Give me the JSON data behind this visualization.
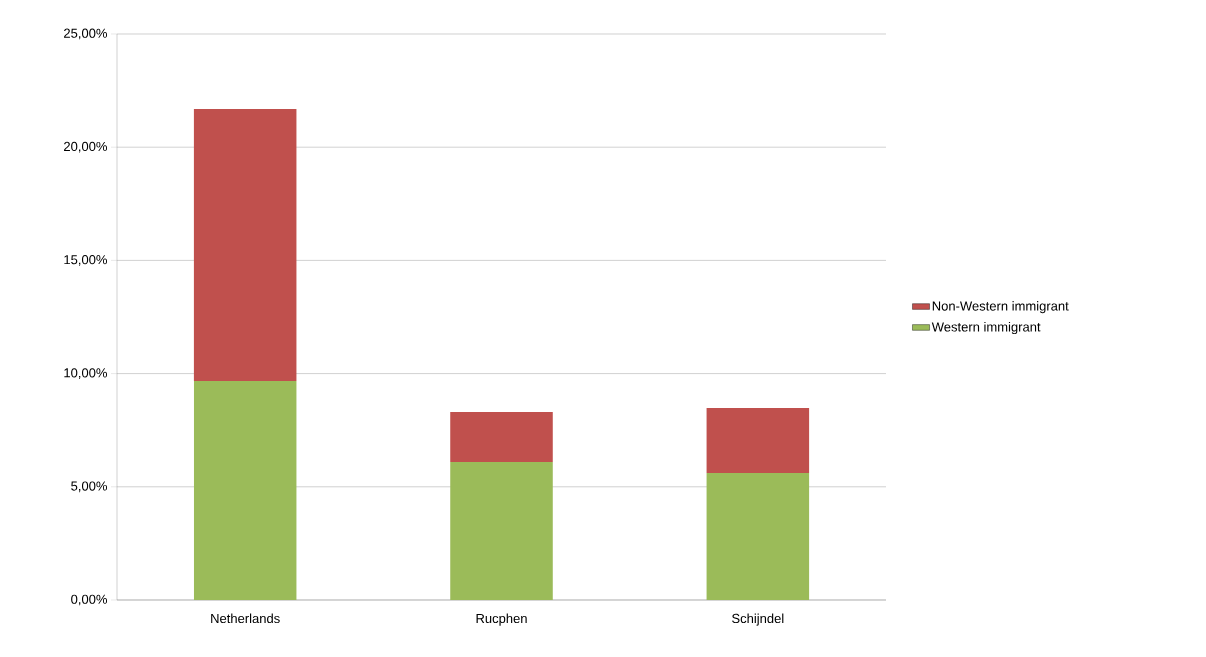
{
  "chart_data": {
    "type": "bar",
    "stacked": true,
    "categories": [
      "Netherlands",
      "Rucphen",
      "Schijndel"
    ],
    "series": [
      {
        "name": "Western immigrant",
        "color": "#9bbb59",
        "values": [
          9.67,
          6.1,
          5.61
        ]
      },
      {
        "name": "Non-Western immigrant",
        "color": "#c0504d",
        "values": [
          12.02,
          2.2,
          2.87
        ]
      }
    ],
    "ylim": [
      0,
      25
    ],
    "yticks": [
      {
        "value": 0,
        "label": "0,00%"
      },
      {
        "value": 5,
        "label": "5,00%"
      },
      {
        "value": 10,
        "label": "10,00%"
      },
      {
        "value": 15,
        "label": "15,00%"
      },
      {
        "value": 20,
        "label": "20,00%"
      },
      {
        "value": 25,
        "label": "25,00%"
      }
    ],
    "grid": "y",
    "legend": "right"
  }
}
